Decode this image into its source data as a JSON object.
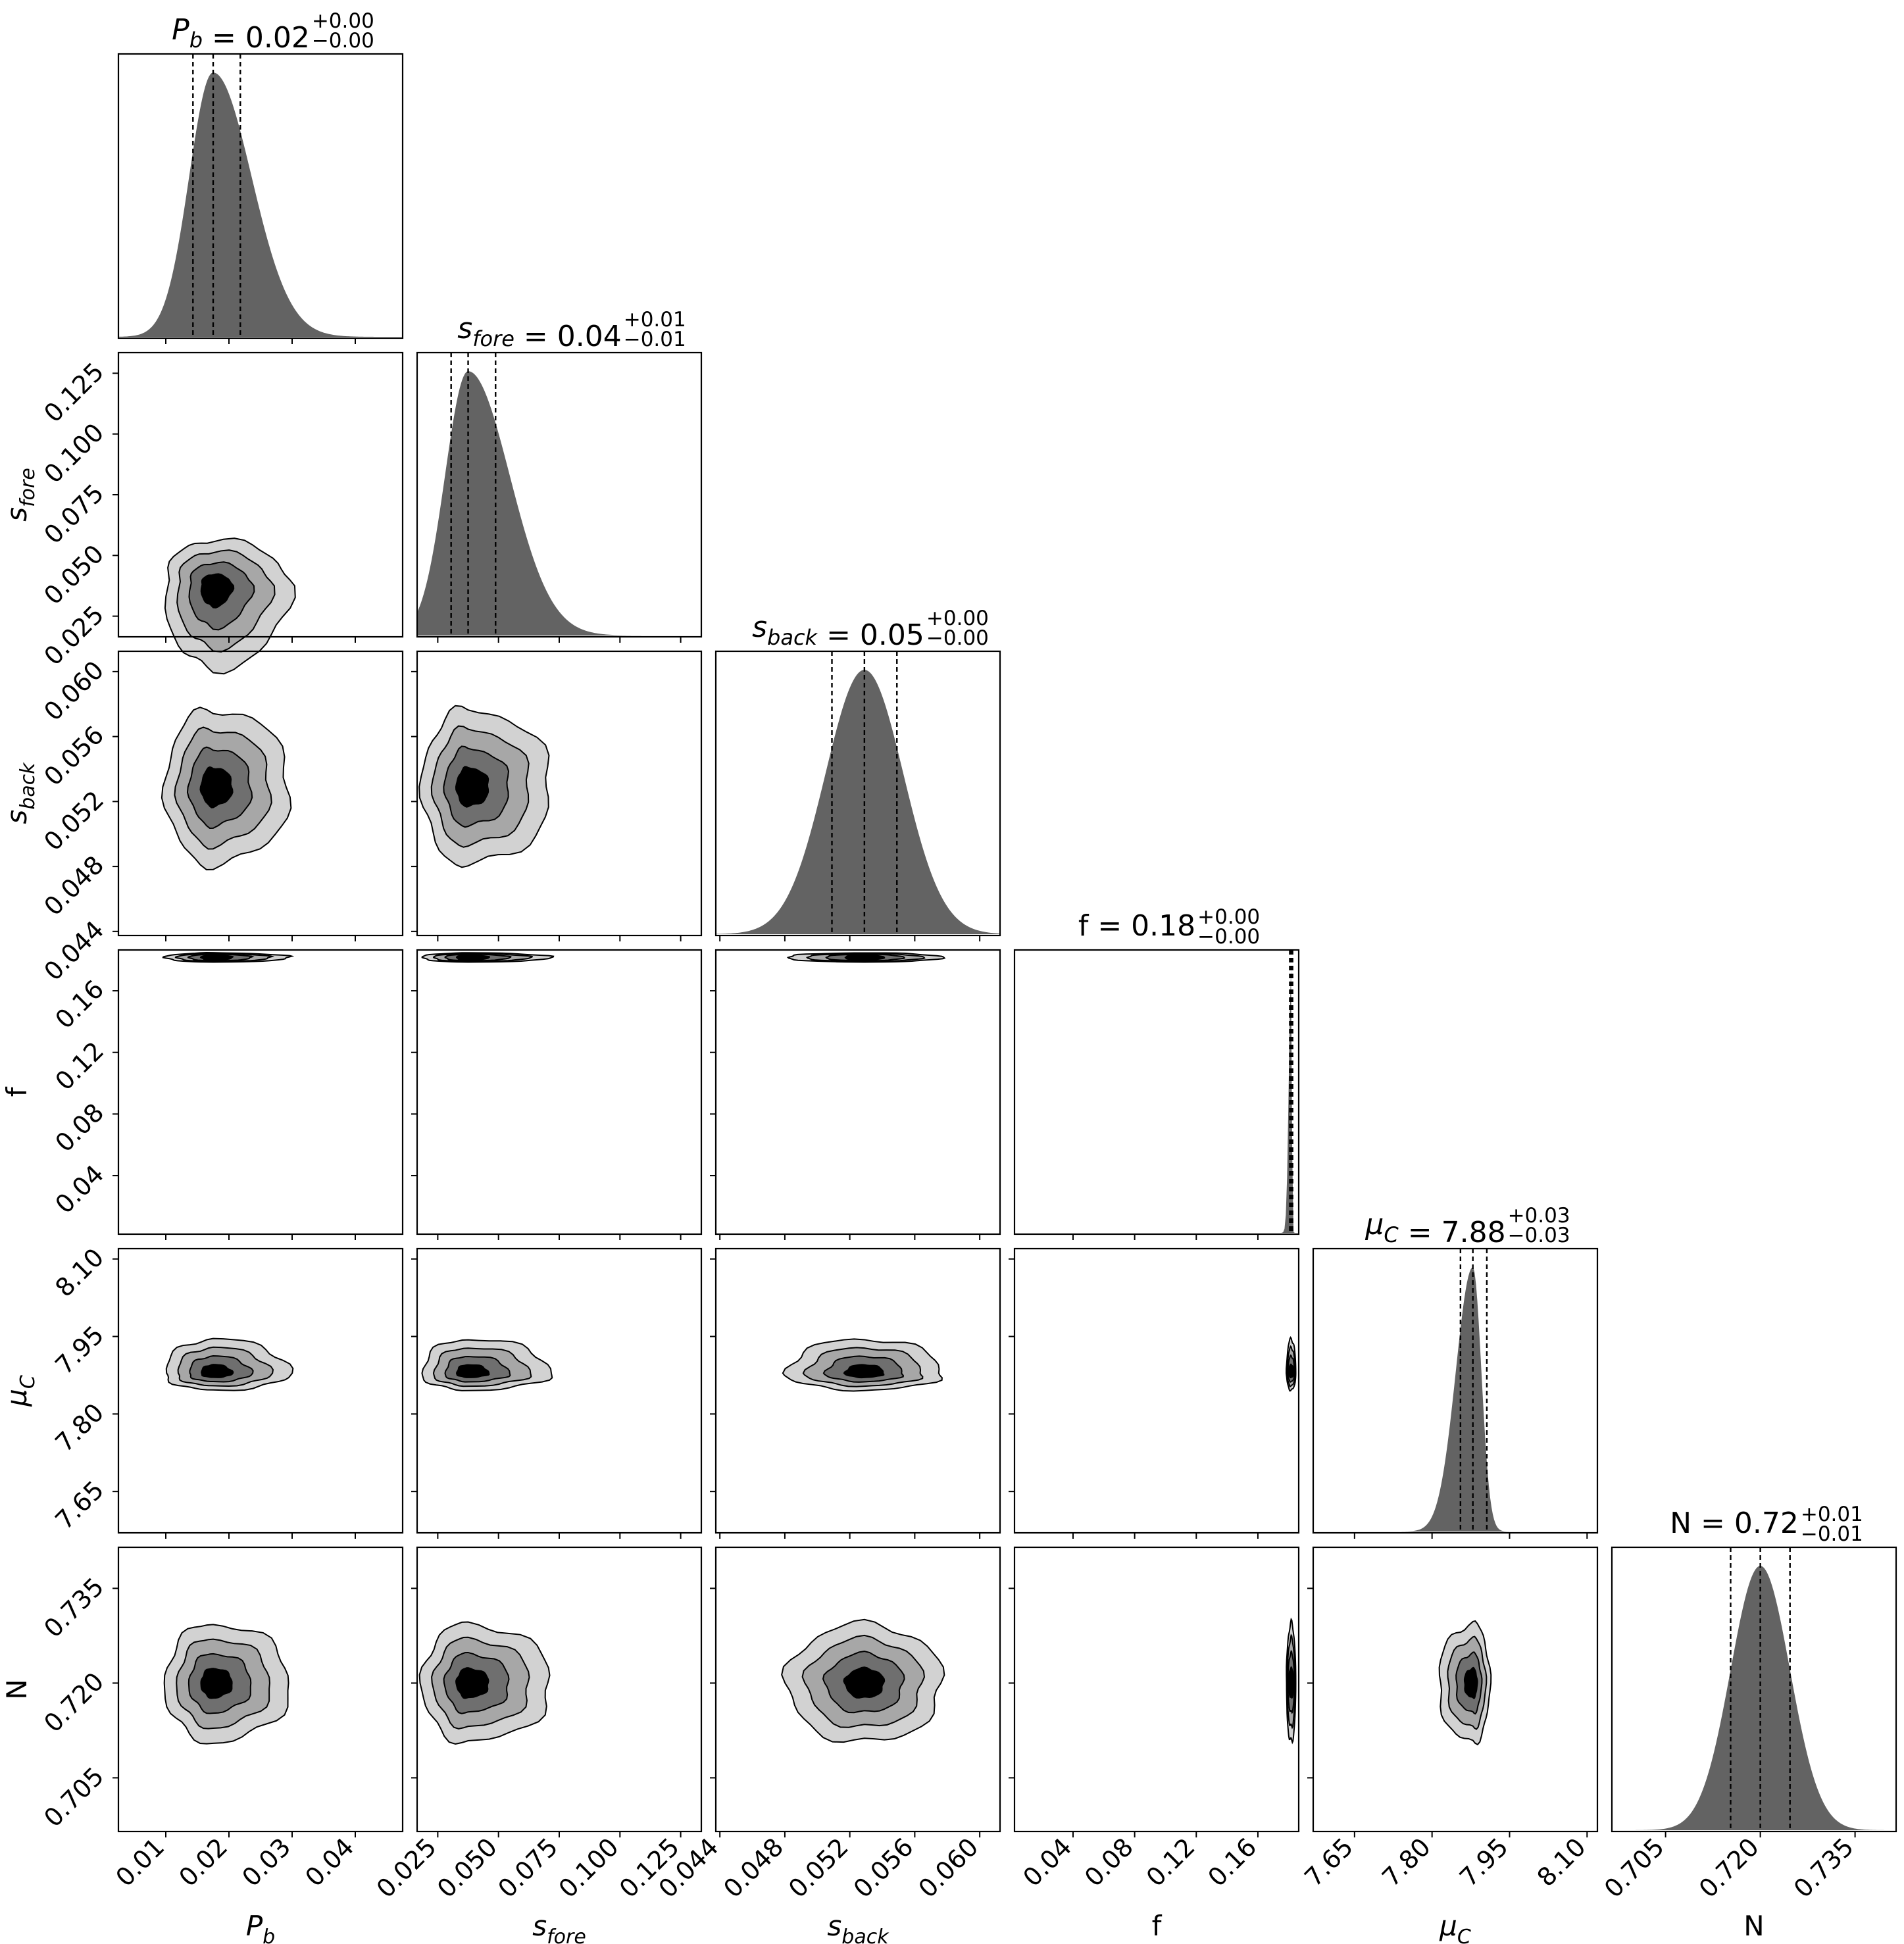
{
  "chart_data": {
    "type": "corner",
    "colors": {
      "histogram": "#636363",
      "contour_levels": [
        "#d2d2d2",
        "#a7a7a7",
        "#6f6f6f",
        "#000000"
      ],
      "lines": "#000000",
      "background": "#ffffff"
    },
    "parameters": [
      {
        "key": "Pb",
        "symbol": "P",
        "sub": "b",
        "label_plain": "",
        "median": 0.0175,
        "sigma": 0.0038,
        "skew": 1.6,
        "q_lo": 0.0143,
        "q_hi": 0.0218,
        "title": {
          "value": "0.02",
          "plus": "+0.00",
          "minus": "−0.00"
        },
        "range": [
          0.0025,
          0.0475
        ],
        "ticks": [
          0.01,
          0.02,
          0.03,
          0.04
        ],
        "tick_labels": [
          "0.01",
          "0.02",
          "0.03",
          "0.04"
        ]
      },
      {
        "key": "sfore",
        "symbol": "s",
        "sub": "fore",
        "label_plain": "",
        "median": 0.0375,
        "sigma": 0.0095,
        "skew": 1.8,
        "q_lo": 0.0305,
        "q_hi": 0.0488,
        "title": {
          "value": "0.04",
          "plus": "+0.01",
          "minus": "−0.01"
        },
        "range": [
          0.0165,
          0.1335
        ],
        "ticks": [
          0.025,
          0.05,
          0.075,
          0.1,
          0.125
        ],
        "tick_labels": [
          "0.025",
          "0.050",
          "0.075",
          "0.100",
          "0.125"
        ]
      },
      {
        "key": "sback",
        "symbol": "s",
        "sub": "back",
        "label_plain": "",
        "median": 0.0529,
        "sigma": 0.0024,
        "skew": 1.0,
        "q_lo": 0.0509,
        "q_hi": 0.0549,
        "title": {
          "value": "0.05",
          "plus": "+0.00",
          "minus": "−0.00"
        },
        "range": [
          0.04375,
          0.06125
        ],
        "ticks": [
          0.044,
          0.048,
          0.052,
          0.056,
          0.06
        ],
        "tick_labels": [
          "0.044",
          "0.048",
          "0.052",
          "0.056",
          "0.060"
        ]
      },
      {
        "key": "f",
        "symbol": "",
        "sub": "",
        "label_plain": "f",
        "median": 0.1816,
        "sigma": 0.0015,
        "skew": 0.3,
        "q_lo": 0.1807,
        "q_hi": 0.1825,
        "title": {
          "value": "0.18",
          "plus": "+0.00",
          "minus": "−0.00"
        },
        "range": [
          0.002,
          0.1865
        ],
        "ticks": [
          0.04,
          0.08,
          0.12,
          0.16
        ],
        "tick_labels": [
          "0.04",
          "0.08",
          "0.12",
          "0.16"
        ]
      },
      {
        "key": "muC",
        "symbol": "μ",
        "sub": "C",
        "label_plain": "",
        "median": 7.879,
        "sigma": 0.033,
        "skew": 0.5,
        "q_lo": 7.855,
        "q_hi": 7.906,
        "title": {
          "value": "7.88",
          "plus": "+0.03",
          "minus": "−0.03"
        },
        "range": [
          7.57,
          8.12
        ],
        "ticks": [
          7.65,
          7.8,
          7.95,
          8.1
        ],
        "tick_labels": [
          "7.65",
          "7.80",
          "7.95",
          "8.10"
        ]
      },
      {
        "key": "N",
        "symbol": "",
        "sub": "",
        "label_plain": "N",
        "median": 0.72,
        "sigma": 0.0047,
        "skew": 1.0,
        "q_lo": 0.7153,
        "q_hi": 0.7247,
        "title": {
          "value": "0.72",
          "plus": "+0.01",
          "minus": "−0.01"
        },
        "range": [
          0.6965,
          0.7415
        ],
        "ticks": [
          0.705,
          0.72,
          0.735
        ],
        "tick_labels": [
          "0.705",
          "0.720",
          "0.735"
        ]
      }
    ],
    "contour_sigma_scales": [
      2.0,
      1.5,
      1.0,
      0.5
    ]
  }
}
